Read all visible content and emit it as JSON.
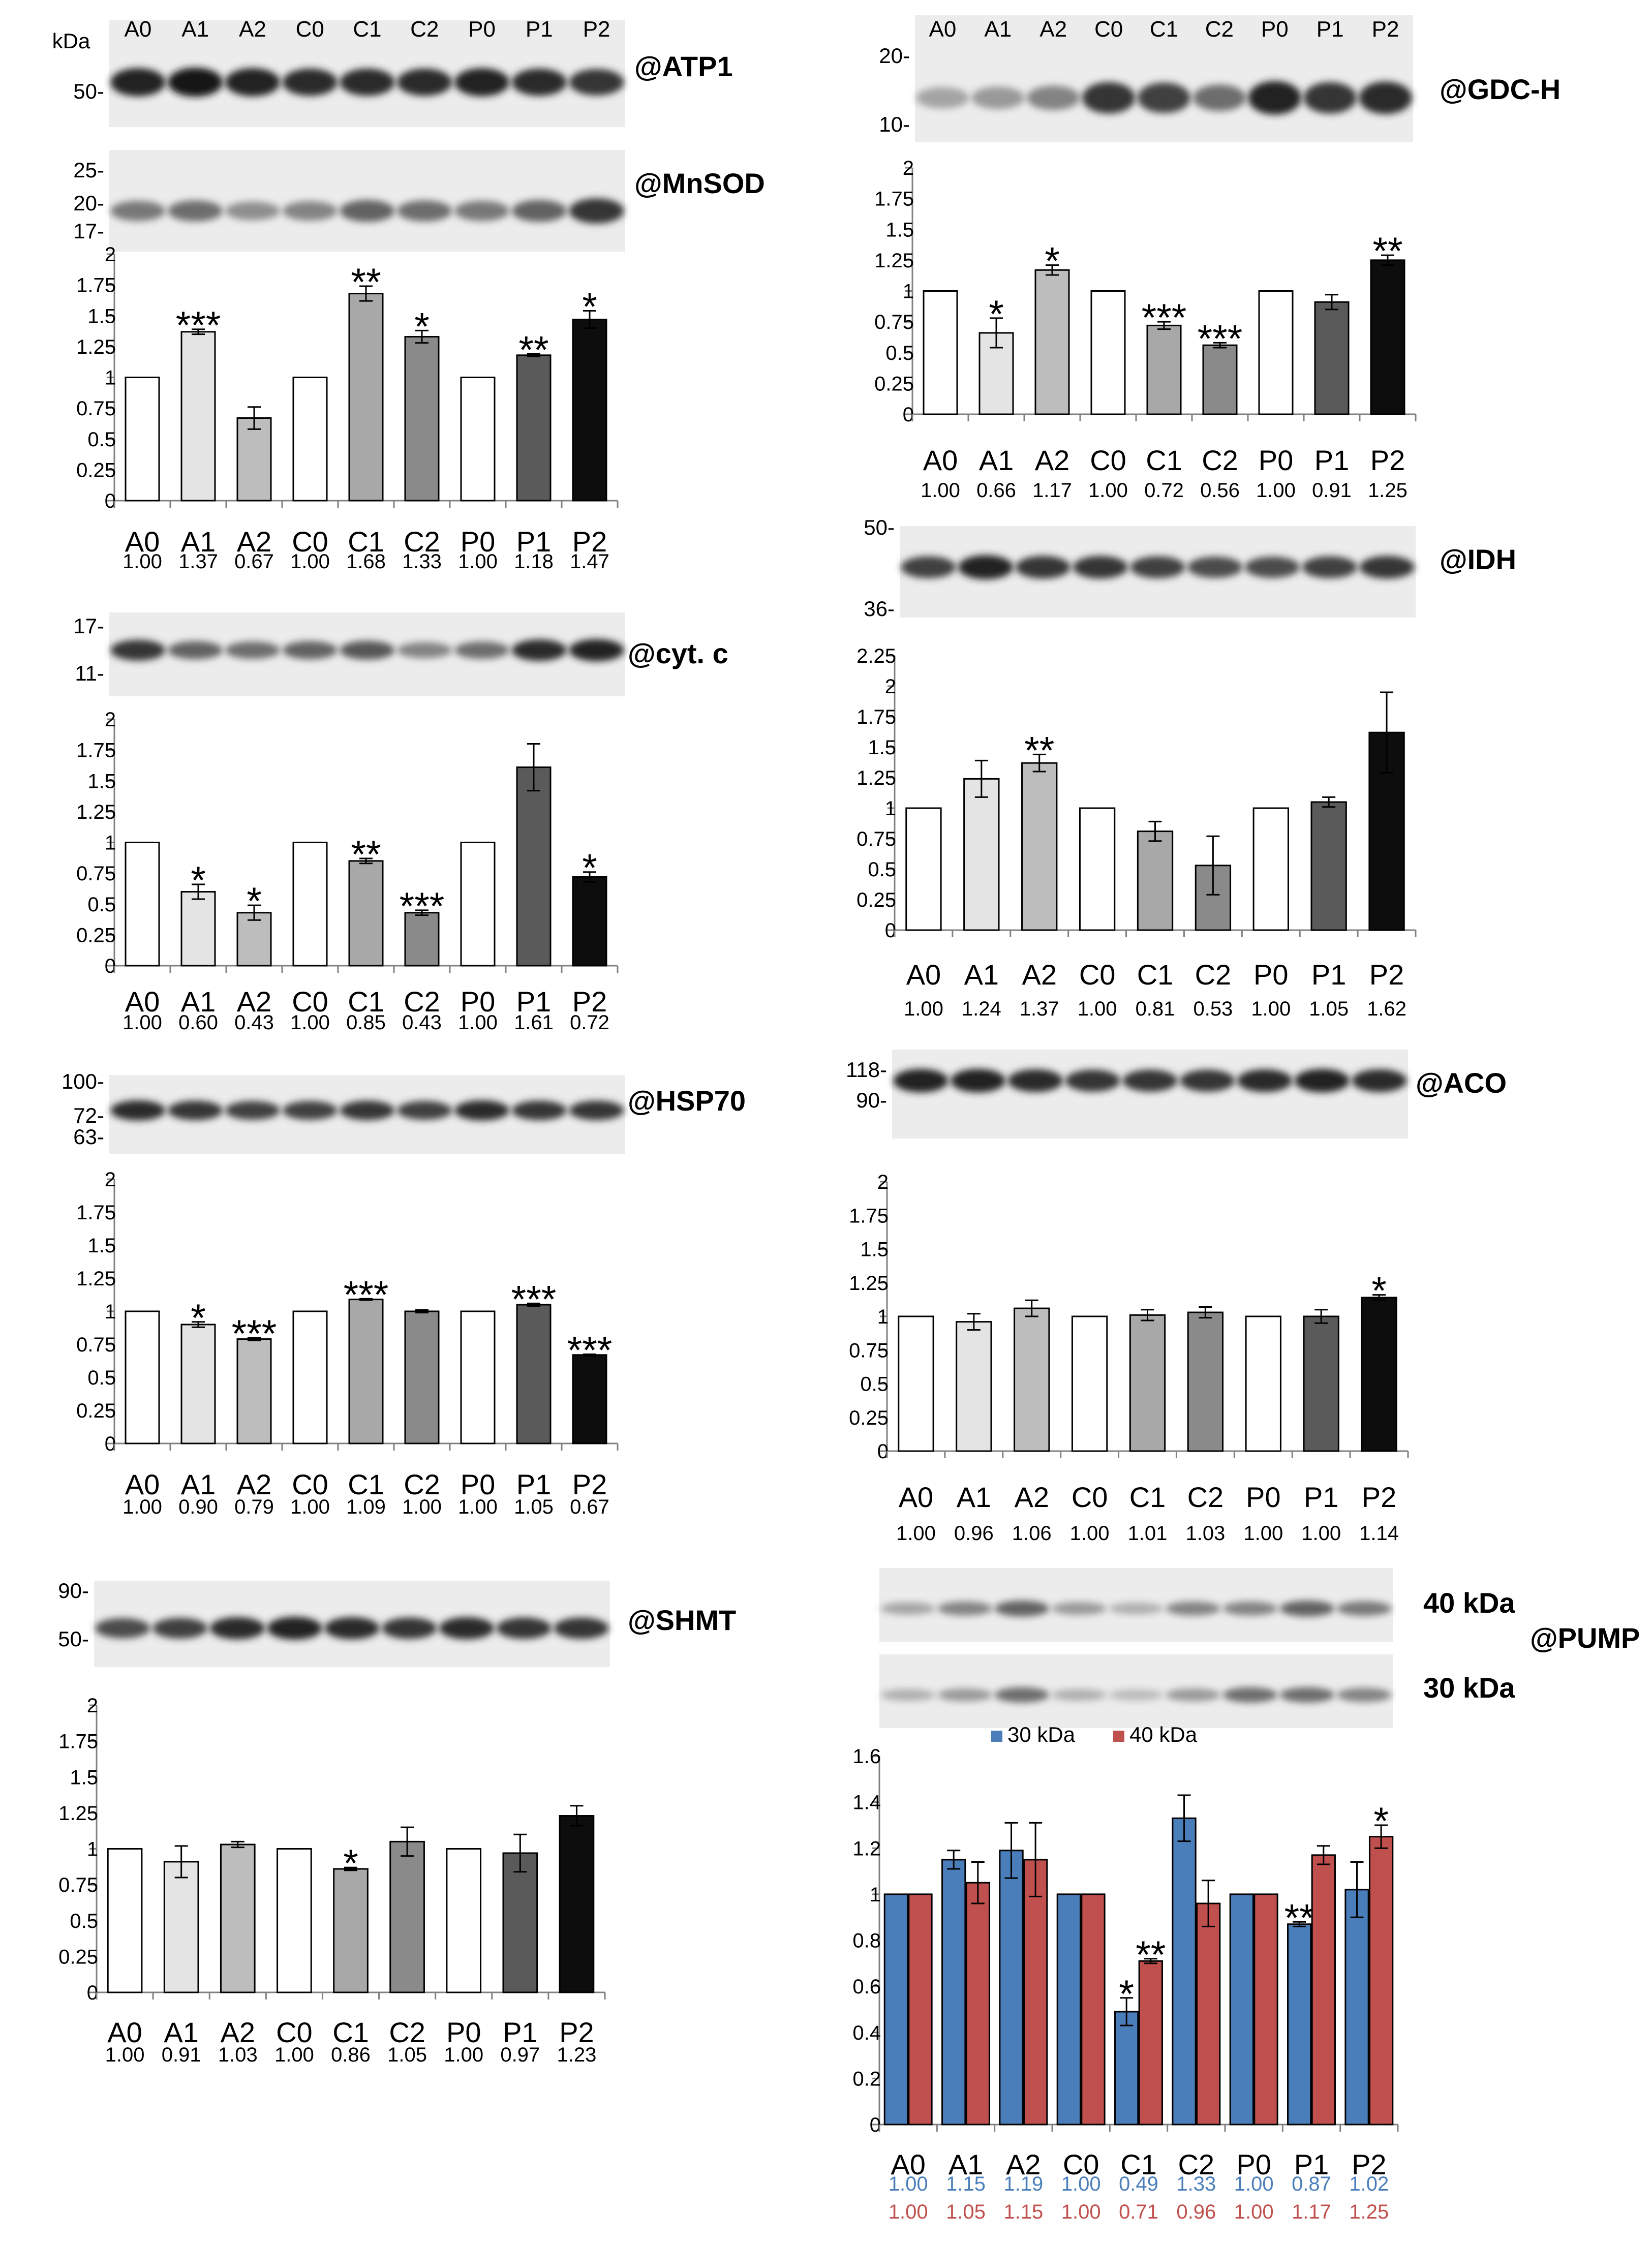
{
  "lanes": [
    "A0",
    "A1",
    "A2",
    "C0",
    "C1",
    "C2",
    "P0",
    "P1",
    "P2"
  ],
  "bar_shades": [
    "#ffffff",
    "#e4e4e4",
    "#bdbdbd",
    "#ffffff",
    "#a8a8a8",
    "#8a8a8a",
    "#ffffff",
    "#5a5a5a",
    "#0d0d0d"
  ],
  "series_colors": {
    "30 kDa": "#4a7ebb",
    "40 kDa": "#c0504d"
  },
  "blots": [
    {
      "name": "ATP1",
      "label": "@ATP1",
      "markers": [
        "50-"
      ],
      "kda_label": "kDa",
      "band": [
        0.9,
        0.95,
        0.9,
        0.85,
        0.85,
        0.85,
        0.9,
        0.85,
        0.8
      ]
    },
    {
      "name": "MnSOD",
      "label": "@MnSOD",
      "markers": [
        "25-",
        "20-",
        "17-"
      ],
      "band": [
        0.5,
        0.55,
        0.4,
        0.45,
        0.6,
        0.55,
        0.5,
        0.6,
        0.8
      ]
    },
    {
      "name": "cyt-c",
      "label": "@cyt. c",
      "markers": [
        "17-",
        "11-"
      ],
      "band": [
        0.8,
        0.6,
        0.55,
        0.6,
        0.65,
        0.45,
        0.55,
        0.85,
        0.9
      ]
    },
    {
      "name": "HSP70",
      "label": "@HSP70",
      "markers": [
        "100-",
        "72-",
        "63-"
      ],
      "band": [
        0.85,
        0.8,
        0.75,
        0.75,
        0.8,
        0.75,
        0.85,
        0.8,
        0.8
      ]
    },
    {
      "name": "SHMT",
      "label": "@SHMT",
      "markers": [
        "90-",
        "50-"
      ],
      "band": [
        0.7,
        0.75,
        0.85,
        0.9,
        0.85,
        0.8,
        0.85,
        0.8,
        0.8
      ]
    },
    {
      "name": "GDC-H",
      "label": "@GDC-H",
      "markers": [
        "20-",
        "10-"
      ],
      "band": [
        0.3,
        0.35,
        0.45,
        0.8,
        0.75,
        0.55,
        0.9,
        0.8,
        0.85
      ]
    },
    {
      "name": "IDH",
      "label": "@IDH",
      "markers": [
        "50-",
        "36-"
      ],
      "band": [
        0.75,
        0.9,
        0.8,
        0.8,
        0.75,
        0.7,
        0.7,
        0.75,
        0.8
      ]
    },
    {
      "name": "ACO",
      "label": "@ACO",
      "markers": [
        "118-",
        "90-"
      ],
      "band": [
        0.9,
        0.9,
        0.85,
        0.8,
        0.8,
        0.8,
        0.85,
        0.9,
        0.85
      ]
    },
    {
      "name": "PUMP40",
      "label": "40 kDa",
      "markers": [],
      "band": [
        0.3,
        0.45,
        0.6,
        0.35,
        0.25,
        0.45,
        0.45,
        0.6,
        0.5
      ]
    },
    {
      "name": "PUMP30",
      "label": "30 kDa",
      "markers": [],
      "band": [
        0.25,
        0.35,
        0.55,
        0.25,
        0.2,
        0.35,
        0.55,
        0.55,
        0.45
      ]
    }
  ],
  "pump_label": "@PUMP",
  "chart_data": [
    {
      "name": "MnSOD",
      "type": "bar",
      "categories": [
        "A0",
        "A1",
        "A2",
        "C0",
        "C1",
        "C2",
        "P0",
        "P1",
        "P2"
      ],
      "values": [
        1.0,
        1.37,
        0.67,
        1.0,
        1.68,
        1.33,
        1.0,
        1.18,
        1.47
      ],
      "errors": [
        0,
        0.02,
        0.09,
        0,
        0.06,
        0.05,
        0,
        0.01,
        0.07
      ],
      "sig": [
        "",
        "***",
        "",
        "",
        "**",
        "*",
        "",
        "**",
        "*"
      ],
      "value_labels": [
        "1.00",
        "1.37",
        "0.67",
        "1.00",
        "1.68",
        "1.33",
        "1.00",
        "1.18",
        "1.47"
      ],
      "ylim": [
        0,
        2
      ],
      "yticks": [
        "0",
        "0.25",
        "0.5",
        "0.75",
        "1",
        "1.25",
        "1.5",
        "1.75",
        "2"
      ]
    },
    {
      "name": "cyt-c",
      "type": "bar",
      "categories": [
        "A0",
        "A1",
        "A2",
        "C0",
        "C1",
        "C2",
        "P0",
        "P1",
        "P2"
      ],
      "values": [
        1.0,
        0.6,
        0.43,
        1.0,
        0.85,
        0.43,
        1.0,
        1.61,
        0.72
      ],
      "errors": [
        0,
        0.06,
        0.06,
        0,
        0.02,
        0.02,
        0,
        0.19,
        0.04
      ],
      "sig": [
        "",
        "*",
        "*",
        "",
        "**",
        "***",
        "",
        "",
        "*"
      ],
      "value_labels": [
        "1.00",
        "0.60",
        "0.43",
        "1.00",
        "0.85",
        "0.43",
        "1.00",
        "1.61",
        "0.72"
      ],
      "ylim": [
        0,
        2
      ],
      "yticks": [
        "0",
        "0.25",
        "0.5",
        "0.75",
        "1",
        "1.25",
        "1.5",
        "1.75",
        "2"
      ]
    },
    {
      "name": "HSP70",
      "type": "bar",
      "categories": [
        "A0",
        "A1",
        "A2",
        "C0",
        "C1",
        "C2",
        "P0",
        "P1",
        "P2"
      ],
      "values": [
        1.0,
        0.9,
        0.79,
        1.0,
        1.09,
        1.0,
        1.0,
        1.05,
        0.67
      ],
      "errors": [
        0,
        0.02,
        0.01,
        0,
        0.005,
        0.01,
        0,
        0.01,
        0.005
      ],
      "sig": [
        "",
        "*",
        "***",
        "",
        "***",
        "",
        "",
        "***",
        "***"
      ],
      "value_labels": [
        "1.00",
        "0.90",
        "0.79",
        "1.00",
        "1.09",
        "1.00",
        "1.00",
        "1.05",
        "0.67"
      ],
      "ylim": [
        0,
        2
      ],
      "yticks": [
        "0",
        "0.25",
        "0.5",
        "0.75",
        "1",
        "1.25",
        "1.5",
        "1.75",
        "2"
      ]
    },
    {
      "name": "SHMT",
      "type": "bar",
      "categories": [
        "A0",
        "A1",
        "A2",
        "C0",
        "C1",
        "C2",
        "P0",
        "P1",
        "P2"
      ],
      "values": [
        1.0,
        0.91,
        1.03,
        1.0,
        0.86,
        1.05,
        1.0,
        0.97,
        1.23
      ],
      "errors": [
        0,
        0.11,
        0.02,
        0,
        0.01,
        0.1,
        0,
        0.13,
        0.07
      ],
      "sig": [
        "",
        "",
        "",
        "",
        "*",
        "",
        "",
        "",
        ""
      ],
      "value_labels": [
        "1.00",
        "0.91",
        "1.03",
        "1.00",
        "0.86",
        "1.05",
        "1.00",
        "0.97",
        "1.23"
      ],
      "ylim": [
        0,
        2
      ],
      "yticks": [
        "0",
        "0.25",
        "0.5",
        "0.75",
        "1",
        "1.25",
        "1.5",
        "1.75",
        "2"
      ]
    },
    {
      "name": "GDC-H",
      "type": "bar",
      "categories": [
        "A0",
        "A1",
        "A2",
        "C0",
        "C1",
        "C2",
        "P0",
        "P1",
        "P2"
      ],
      "values": [
        1.0,
        0.66,
        1.17,
        1.0,
        0.72,
        0.56,
        1.0,
        0.91,
        1.25
      ],
      "errors": [
        0,
        0.12,
        0.04,
        0,
        0.03,
        0.02,
        0,
        0.06,
        0.04
      ],
      "sig": [
        "",
        "*",
        "*",
        "",
        "***",
        "***",
        "",
        "",
        "**"
      ],
      "value_labels": [
        "1.00",
        "0.66",
        "1.17",
        "1.00",
        "0.72",
        "0.56",
        "1.00",
        "0.91",
        "1.25"
      ],
      "ylim": [
        0,
        2
      ],
      "yticks": [
        "0",
        "0.25",
        "0.5",
        "0.75",
        "1",
        "1.25",
        "1.5",
        "1.75",
        "2"
      ]
    },
    {
      "name": "IDH",
      "type": "bar",
      "categories": [
        "A0",
        "A1",
        "A2",
        "C0",
        "C1",
        "C2",
        "P0",
        "P1",
        "P2"
      ],
      "values": [
        1.0,
        1.24,
        1.37,
        1.0,
        0.81,
        0.53,
        1.0,
        1.05,
        1.62
      ],
      "errors": [
        0,
        0.15,
        0.07,
        0,
        0.08,
        0.24,
        0,
        0.04,
        0.33
      ],
      "sig": [
        "",
        "",
        "**",
        "",
        "",
        "",
        "",
        "",
        ""
      ],
      "value_labels": [
        "1.00",
        "1.24",
        "1.37",
        "1.00",
        "0.81",
        "0.53",
        "1.00",
        "1.05",
        "1.62"
      ],
      "ylim": [
        0,
        2.25
      ],
      "yticks": [
        "0",
        "0.25",
        "0.5",
        "0.75",
        "1",
        "1.25",
        "1.5",
        "1.75",
        "2",
        "2.25"
      ]
    },
    {
      "name": "ACO",
      "type": "bar",
      "categories": [
        "A0",
        "A1",
        "A2",
        "C0",
        "C1",
        "C2",
        "P0",
        "P1",
        "P2"
      ],
      "values": [
        1.0,
        0.96,
        1.06,
        1.0,
        1.01,
        1.03,
        1.0,
        1.0,
        1.14
      ],
      "errors": [
        0,
        0.06,
        0.06,
        0,
        0.04,
        0.04,
        0,
        0.05,
        0.02
      ],
      "sig": [
        "",
        "",
        "",
        "",
        "",
        "",
        "",
        "",
        "*"
      ],
      "value_labels": [
        "1.00",
        "0.96",
        "1.06",
        "1.00",
        "1.01",
        "1.03",
        "1.00",
        "1.00",
        "1.14"
      ],
      "ylim": [
        0,
        2
      ],
      "yticks": [
        "0",
        "0.25",
        "0.5",
        "0.75",
        "1",
        "1.25",
        "1.5",
        "1.75",
        "2"
      ]
    },
    {
      "name": "PUMP",
      "type": "bar",
      "categories": [
        "A0",
        "A1",
        "A2",
        "C0",
        "C1",
        "C2",
        "P0",
        "P1",
        "P2"
      ],
      "series": [
        {
          "name": "30 kDa",
          "values": [
            1.0,
            1.15,
            1.19,
            1.0,
            0.49,
            1.33,
            1.0,
            0.87,
            1.02
          ],
          "errors": [
            0,
            0.04,
            0.12,
            0,
            0.06,
            0.1,
            0,
            0.01,
            0.12
          ],
          "sig": [
            "",
            "",
            "",
            "",
            "*",
            "",
            "",
            "**",
            ""
          ],
          "value_labels": [
            "1.00",
            "1.15",
            "1.19",
            "1.00",
            "0.49",
            "1.33",
            "1.00",
            "0.87",
            "1.02"
          ]
        },
        {
          "name": "40 kDa",
          "values": [
            1.0,
            1.05,
            1.15,
            1.0,
            0.71,
            0.96,
            1.0,
            1.17,
            1.25
          ],
          "errors": [
            0,
            0.09,
            0.16,
            0,
            0.01,
            0.1,
            0,
            0.04,
            0.05
          ],
          "sig": [
            "",
            "",
            "",
            "",
            "**",
            "",
            "",
            "",
            "*"
          ],
          "value_labels": [
            "1.00",
            "1.05",
            "1.15",
            "1.00",
            "0.71",
            "0.96",
            "1.00",
            "1.17",
            "1.25"
          ]
        }
      ],
      "ylim": [
        0,
        1.6
      ],
      "yticks": [
        "0",
        "0.2",
        "0.4",
        "0.6",
        "0.8",
        "1",
        "1.2",
        "1.4",
        "1.6"
      ]
    }
  ]
}
